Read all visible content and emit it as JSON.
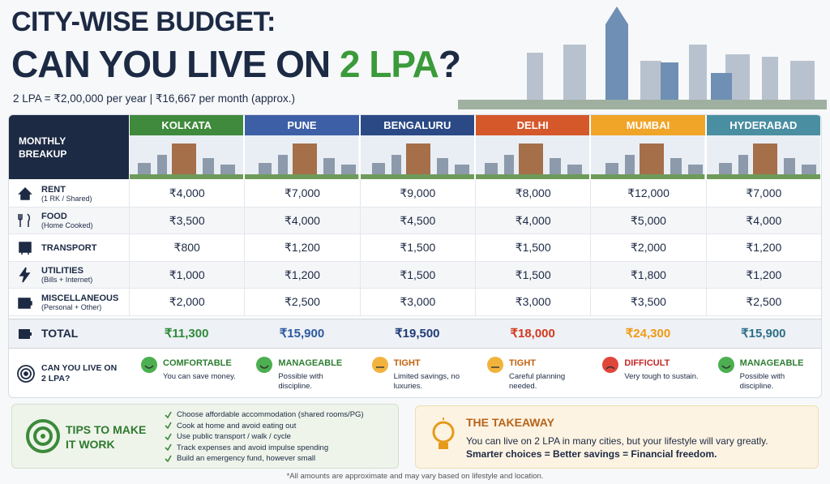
{
  "header": {
    "title_line1": "CITY-WISE BUDGET:",
    "title_line2": "CAN YOU LIVE ON",
    "title_highlight": "2 LPA",
    "title_end": "?",
    "subtitle": "2 LPA = ₹2,00,000 per year | ₹16,667 per month (approx.)"
  },
  "table": {
    "corner": "MONTHLY BREAKUP",
    "cities": [
      {
        "name": "KOLKATA",
        "color": "#3f8a3c",
        "total_color": "#2f8a3a"
      },
      {
        "name": "PUNE",
        "color": "#3d5fa6",
        "total_color": "#2c5aa0"
      },
      {
        "name": "BENGALURU",
        "color": "#2b4a85",
        "total_color": "#1f3c78"
      },
      {
        "name": "DELHI",
        "color": "#d5582b",
        "total_color": "#d23a1e"
      },
      {
        "name": "MUMBAI",
        "color": "#f0a428",
        "total_color": "#f09a12"
      },
      {
        "name": "HYDERABAD",
        "color": "#4a8ea2",
        "total_color": "#2d6f88"
      }
    ],
    "rows": [
      {
        "label": "RENT",
        "sublabel": "(1 RK / Shared)",
        "values": [
          "₹4,000",
          "₹7,000",
          "₹9,000",
          "₹8,000",
          "₹12,000",
          "₹7,000"
        ]
      },
      {
        "label": "FOOD",
        "sublabel": "(Home Cooked)",
        "values": [
          "₹3,500",
          "₹4,000",
          "₹4,500",
          "₹4,000",
          "₹5,000",
          "₹4,000"
        ]
      },
      {
        "label": "TRANSPORT",
        "sublabel": null,
        "values": [
          "₹800",
          "₹1,200",
          "₹1,500",
          "₹1,500",
          "₹2,000",
          "₹1,200"
        ]
      },
      {
        "label": "UTILITIES",
        "sublabel": "(Bills + Internet)",
        "values": [
          "₹1,000",
          "₹1,200",
          "₹1,500",
          "₹1,500",
          "₹1,800",
          "₹1,200"
        ]
      },
      {
        "label": "MISCELLANEOUS",
        "sublabel": "(Personal + Other)",
        "values": [
          "₹2,000",
          "₹2,500",
          "₹3,000",
          "₹3,000",
          "₹3,500",
          "₹2,500"
        ]
      }
    ],
    "total": {
      "label": "TOTAL",
      "values": [
        "₹11,300",
        "₹15,900",
        "₹19,500",
        "₹18,000",
        "₹24,300",
        "₹15,900"
      ]
    },
    "verdict": {
      "label": "CAN YOU LIVE ON 2 LPA?",
      "items": [
        {
          "status": "COMFORTABLE",
          "note": "You can save money.",
          "color": "#4caf50"
        },
        {
          "status": "MANAGEABLE",
          "note": "Possible with discipline.",
          "color": "#4caf50"
        },
        {
          "status": "TIGHT",
          "note": "Limited savings, no luxuries.",
          "color": "#f2b33d"
        },
        {
          "status": "TIGHT",
          "note": "Careful planning needed.",
          "color": "#f2b33d"
        },
        {
          "status": "DIFFICULT",
          "note": "Very tough to sustain.",
          "color": "#e0463a"
        },
        {
          "status": "MANAGEABLE",
          "note": "Possible with discipline.",
          "color": "#4caf50"
        }
      ]
    }
  },
  "tips": {
    "title": "TIPS TO MAKE IT WORK",
    "items": [
      "Choose affordable accommodation (shared rooms/PG)",
      "Cook at home and avoid eating out",
      "Use public transport / walk / cycle",
      "Track expenses and avoid impulse spending",
      "Build an emergency fund, however small"
    ]
  },
  "takeaway": {
    "title": "THE TAKEAWAY",
    "text": "You can live on 2 LPA in many cities, but your lifestyle will vary greatly.",
    "emphasis": "Smarter choices = Better savings = Financial freedom."
  },
  "footnote": "*All amounts are approximate and may vary based on lifestyle and location."
}
